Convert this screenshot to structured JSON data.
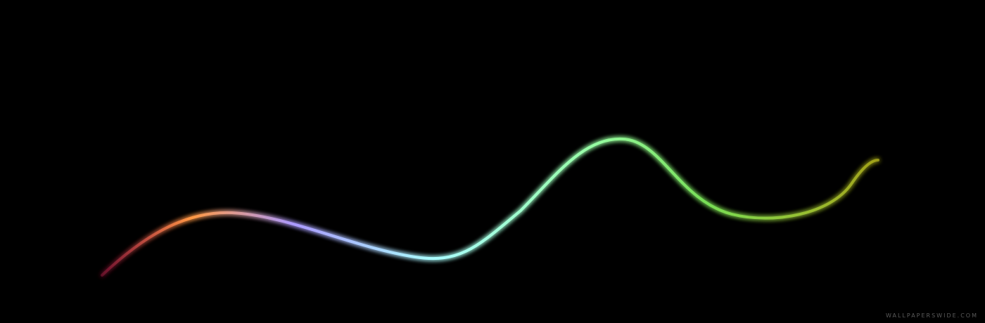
{
  "wallpaper": {
    "background_color": "#000000",
    "watermark_text": "WALLPAPERSWIDE.COM",
    "palette": {
      "axis_vertical": [
        "#ff33ff",
        "#cc22cc"
      ],
      "axis_horizontal": [
        "#ff55ff",
        "#ffffff",
        "#66ccff",
        "#33dd33",
        "#998800"
      ],
      "curve": [
        "#cc2255",
        "#ff9944",
        "#aa99ff",
        "#aaffff",
        "#99ffaa",
        "#77dd55",
        "#cccc22"
      ]
    }
  }
}
